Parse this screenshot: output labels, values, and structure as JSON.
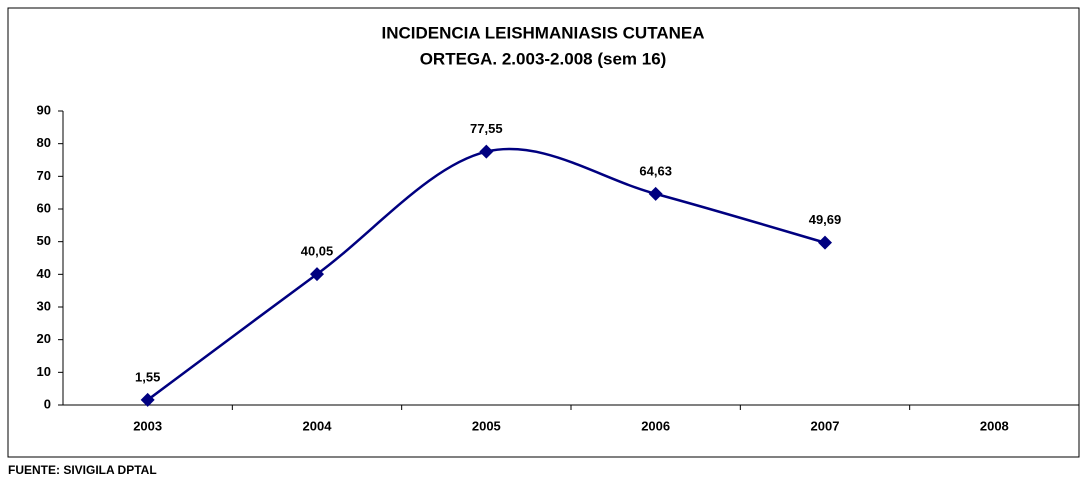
{
  "chart_data": {
    "type": "line",
    "title": "INCIDENCIA LEISHMANIASIS CUTANEA",
    "subtitle": "ORTEGA. 2.003-2.008 (sem 16)",
    "source": "FUENTE: SIVIGILA DPTAL",
    "categories": [
      "2003",
      "2004",
      "2005",
      "2006",
      "2007",
      "2008"
    ],
    "series": [
      {
        "name": null,
        "color": "#000080",
        "values": [
          1.55,
          40.05,
          77.55,
          64.63,
          49.69,
          null
        ],
        "value_labels": [
          "1,55",
          "40,05",
          "77,55",
          "64,63",
          "49,69",
          null
        ]
      }
    ],
    "ylim": [
      0,
      90
    ],
    "yticks": [
      0,
      10,
      20,
      30,
      40,
      50,
      60,
      70,
      80,
      90
    ],
    "grid": false,
    "smooth": true
  }
}
